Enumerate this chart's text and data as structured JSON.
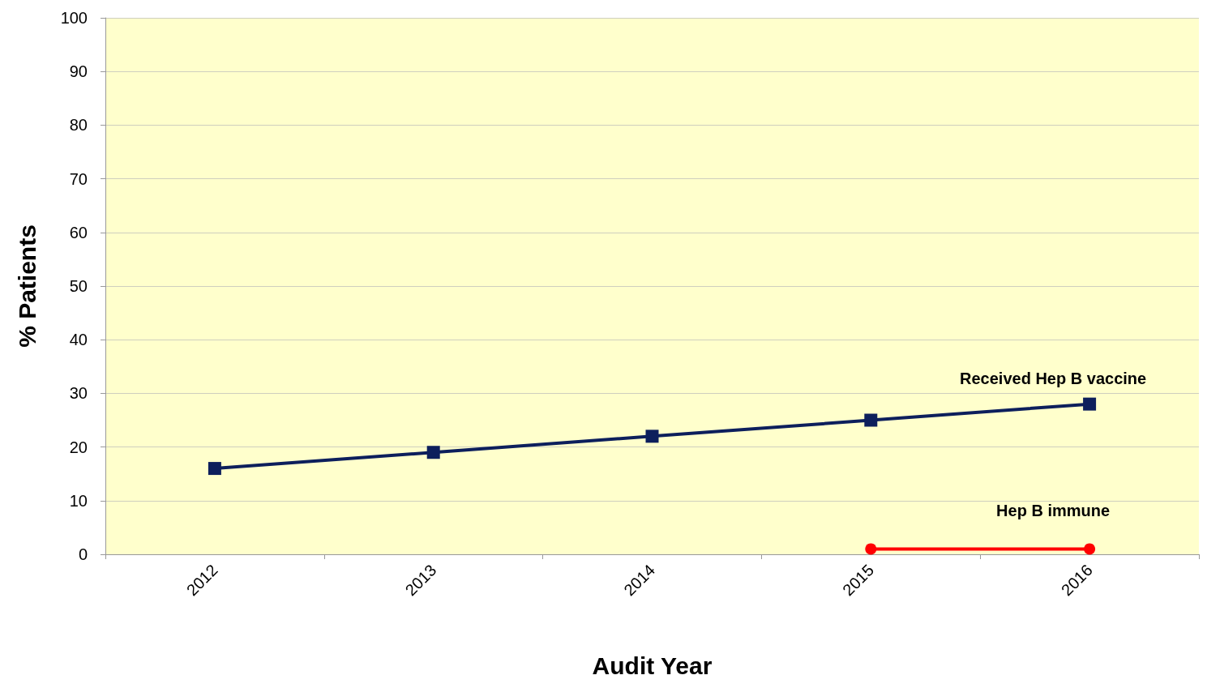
{
  "chart_data": {
    "type": "line",
    "xlabel": "Audit Year",
    "ylabel": "% Patients",
    "categories": [
      "2012",
      "2013",
      "2014",
      "2015",
      "2016"
    ],
    "series": [
      {
        "name": "Received Hep B vaccine",
        "color": "#0d1f5c",
        "marker": "square",
        "values": [
          16,
          19,
          22,
          25,
          28
        ]
      },
      {
        "name": "Hep B immune",
        "color": "#ff0000",
        "marker": "circle",
        "values": [
          null,
          null,
          null,
          1,
          1
        ]
      }
    ],
    "ylim": [
      0,
      100
    ],
    "yticks": [
      0,
      10,
      20,
      30,
      40,
      50,
      60,
      70,
      80,
      90,
      100
    ],
    "grid": "y",
    "legend": false,
    "line_style": "solid"
  }
}
